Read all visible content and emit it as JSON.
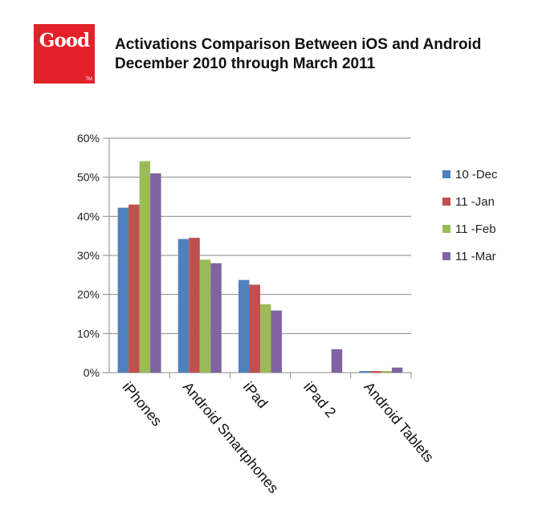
{
  "logo": {
    "text": "Good",
    "tm": "TM"
  },
  "title": {
    "line1": "Activations Comparison Between iOS and Android",
    "line2": "December 2010 through March 2011"
  },
  "chart_data": {
    "type": "bar",
    "categories": [
      "iPhones",
      "Android Smartphones",
      "iPad",
      "iPad 2",
      "Android Tablets"
    ],
    "series": [
      {
        "name": "10 -Dec",
        "color": "#4f81bd",
        "values": [
          42.2,
          34.2,
          23.7,
          0,
          0.4
        ]
      },
      {
        "name": "11 -Jan",
        "color": "#c0504d",
        "values": [
          43.0,
          34.5,
          22.5,
          0,
          0.4
        ]
      },
      {
        "name": "11 -Feb",
        "color": "#9bbb59",
        "values": [
          54.1,
          28.9,
          17.5,
          0,
          0.4
        ]
      },
      {
        "name": "11 -Mar",
        "color": "#8064a2",
        "values": [
          51.0,
          28.0,
          15.9,
          6.0,
          1.3
        ]
      }
    ],
    "yticks": [
      "0%",
      "10%",
      "20%",
      "30%",
      "40%",
      "50%",
      "60%"
    ],
    "ylim": [
      0,
      60
    ],
    "grid": true,
    "legend": "right",
    "title": "",
    "xlabel": "",
    "ylabel": ""
  }
}
